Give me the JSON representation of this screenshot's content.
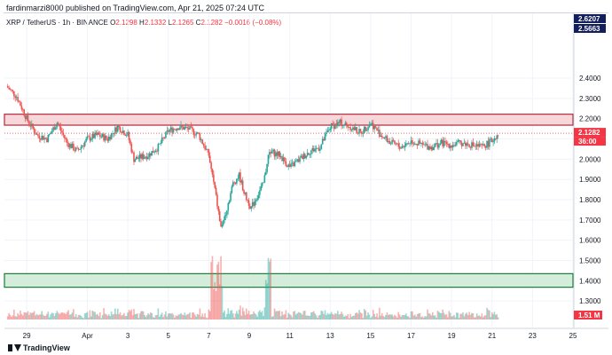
{
  "header": {
    "published": "fardinmarzi8000 published on TradingView.com, Apr 21, 2025 07:24 UTC"
  },
  "legend": {
    "symbol": "XRP / TetherUS · 1h · BINANCE",
    "open_label": "O",
    "open": "2.1298",
    "high_label": "H",
    "high": "2.1332",
    "low_label": "L",
    "low": "2.1265",
    "close_label": "C",
    "close": "2.1282",
    "change": "−0.0016 (−0.08%)"
  },
  "brand": {
    "name": "TradingView",
    "icon": "tradingview-logo-icon"
  },
  "colors": {
    "up": "#26a69a",
    "down": "#ef5350",
    "resistance_fill": "#f8d7da",
    "resistance_border": "#b2283b",
    "support_fill": "#d4edda",
    "support_border": "#1b7a3a",
    "axis_tag": "#131f5c",
    "price_tag": "#f23645"
  },
  "chart_data": {
    "type": "candlestick",
    "y_ticks": [
      "2.4000",
      "2.3000",
      "2.2000",
      "2.1000",
      "2.0000",
      "1.9000",
      "1.8000",
      "1.7000",
      "1.6000",
      "1.5000",
      "1.4000",
      "1.3000"
    ],
    "ylim": [
      1.2,
      2.72
    ],
    "x_ticks": [
      "29",
      "Apr",
      "3",
      "5",
      "7",
      "9",
      "11",
      "13",
      "15",
      "17",
      "19",
      "21",
      "23",
      "25"
    ],
    "x_tick_days": [
      29,
      32,
      34,
      36,
      38,
      40,
      42,
      44,
      46,
      48,
      50,
      52,
      54,
      56
    ],
    "xlim": [
      27.9,
      56
    ],
    "axis_tags": [
      {
        "label": "2.6207",
        "value": 2.6207,
        "kind": "zone"
      },
      {
        "label": "2.5663",
        "value": 2.5663,
        "kind": "zone"
      },
      {
        "label": "2.1282",
        "value": 2.1282,
        "kind": "price"
      },
      {
        "label": "36:00",
        "value": 2.093,
        "kind": "timer"
      }
    ],
    "volume_tag": "1.51 M",
    "zones": [
      {
        "name": "",
        "kind": "resistance",
        "top": 2.222,
        "bottom": 2.168
      },
      {
        "name": "",
        "kind": "support",
        "top": 1.435,
        "bottom": 1.368
      }
    ],
    "last_price": 2.1282,
    "series": [
      {
        "day": 28.0,
        "price": 2.36
      },
      {
        "day": 28.5,
        "price": 2.31
      },
      {
        "day": 29.0,
        "price": 2.2
      },
      {
        "day": 29.5,
        "price": 2.12
      },
      {
        "day": 30.0,
        "price": 2.1
      },
      {
        "day": 30.5,
        "price": 2.18
      },
      {
        "day": 31.0,
        "price": 2.08
      },
      {
        "day": 31.5,
        "price": 2.04
      },
      {
        "day": 32.0,
        "price": 2.1
      },
      {
        "day": 32.5,
        "price": 2.12
      },
      {
        "day": 33.0,
        "price": 2.1
      },
      {
        "day": 33.5,
        "price": 2.16
      },
      {
        "day": 34.0,
        "price": 2.12
      },
      {
        "day": 34.3,
        "price": 2.0
      },
      {
        "day": 35.0,
        "price": 2.02
      },
      {
        "day": 35.5,
        "price": 2.06
      },
      {
        "day": 36.0,
        "price": 2.14
      },
      {
        "day": 36.5,
        "price": 2.16
      },
      {
        "day": 37.0,
        "price": 2.15
      },
      {
        "day": 37.5,
        "price": 2.12
      },
      {
        "day": 38.0,
        "price": 2.02
      },
      {
        "day": 38.3,
        "price": 1.85
      },
      {
        "day": 38.6,
        "price": 1.66
      },
      {
        "day": 38.9,
        "price": 1.76
      },
      {
        "day": 39.2,
        "price": 1.88
      },
      {
        "day": 39.5,
        "price": 1.92
      },
      {
        "day": 39.8,
        "price": 1.82
      },
      {
        "day": 40.1,
        "price": 1.76
      },
      {
        "day": 40.4,
        "price": 1.82
      },
      {
        "day": 40.7,
        "price": 1.88
      },
      {
        "day": 41.0,
        "price": 2.04
      },
      {
        "day": 41.5,
        "price": 2.02
      },
      {
        "day": 42.0,
        "price": 1.96
      },
      {
        "day": 42.5,
        "price": 2.0
      },
      {
        "day": 43.0,
        "price": 2.04
      },
      {
        "day": 43.5,
        "price": 2.06
      },
      {
        "day": 44.0,
        "price": 2.16
      },
      {
        "day": 44.5,
        "price": 2.18
      },
      {
        "day": 45.0,
        "price": 2.16
      },
      {
        "day": 45.5,
        "price": 2.13
      },
      {
        "day": 46.0,
        "price": 2.18
      },
      {
        "day": 46.5,
        "price": 2.12
      },
      {
        "day": 47.0,
        "price": 2.08
      },
      {
        "day": 47.5,
        "price": 2.06
      },
      {
        "day": 48.0,
        "price": 2.09
      },
      {
        "day": 48.5,
        "price": 2.07
      },
      {
        "day": 49.0,
        "price": 2.06
      },
      {
        "day": 49.5,
        "price": 2.08
      },
      {
        "day": 50.0,
        "price": 2.07
      },
      {
        "day": 50.5,
        "price": 2.08
      },
      {
        "day": 51.0,
        "price": 2.07
      },
      {
        "day": 51.5,
        "price": 2.06
      },
      {
        "day": 52.0,
        "price": 2.09
      },
      {
        "day": 52.3,
        "price": 2.13
      }
    ]
  }
}
